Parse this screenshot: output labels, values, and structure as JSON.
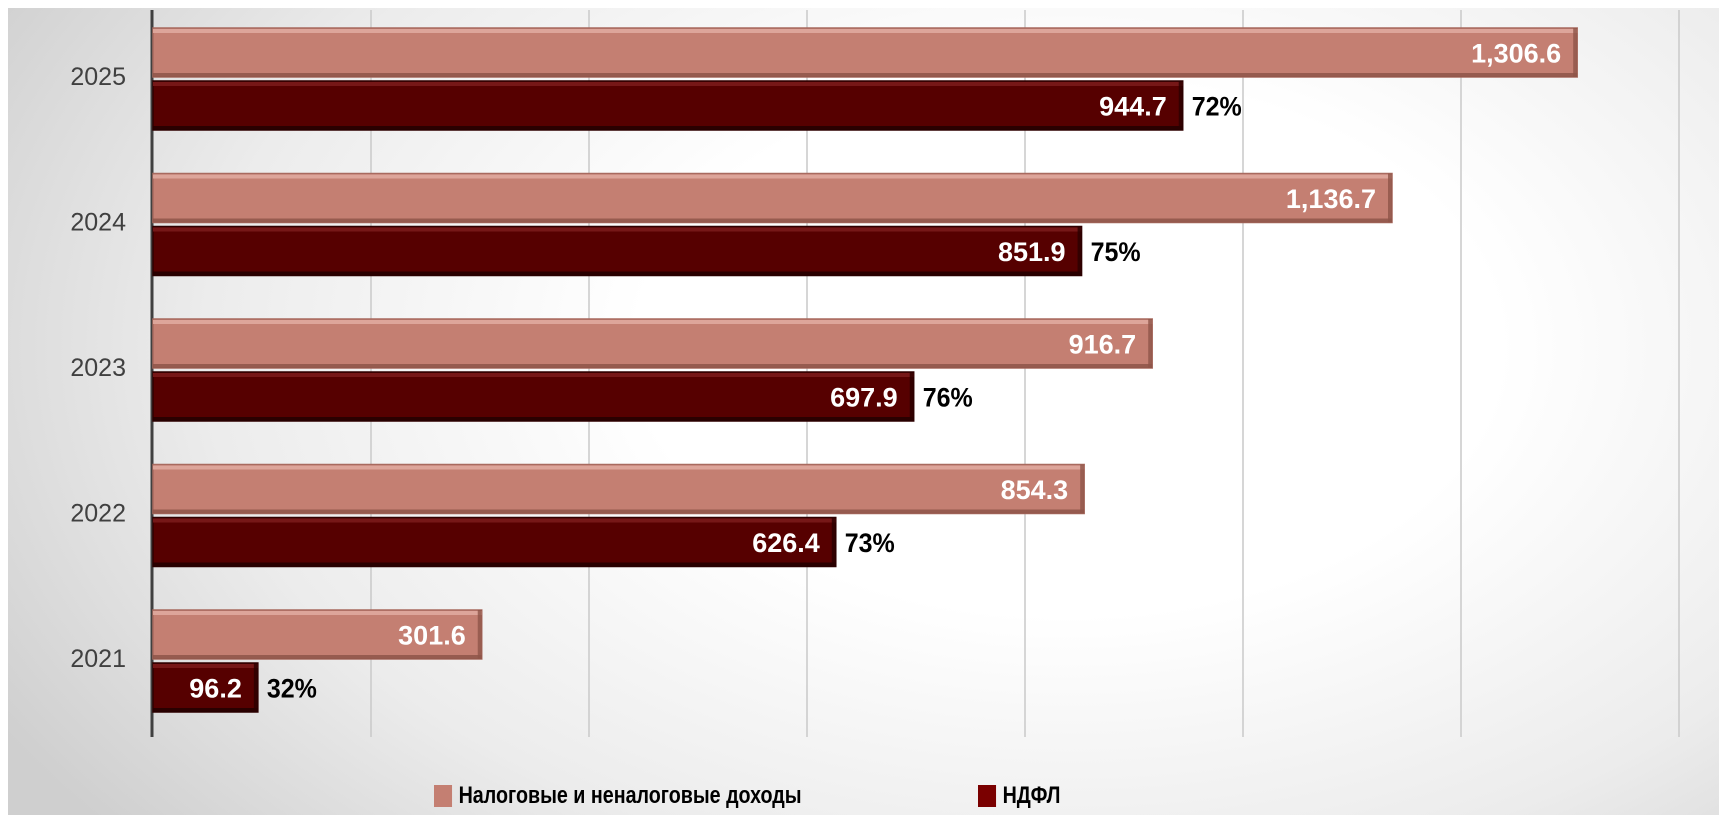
{
  "chart_data": {
    "type": "bar",
    "orientation": "horizontal",
    "categories": [
      "2025",
      "2024",
      "2023",
      "2022",
      "2021"
    ],
    "series": [
      {
        "name": "Налоговые и неналоговые доходы",
        "color": "#c47f72",
        "values": [
          1306.6,
          1136.7,
          916.7,
          854.3,
          301.6
        ],
        "labels": [
          "1,306.6",
          "1,136.7",
          "916.7",
          "854.3",
          "301.6"
        ]
      },
      {
        "name": "НДФЛ",
        "color": "#560000",
        "values": [
          944.7,
          851.9,
          697.9,
          626.4,
          96.2
        ],
        "labels": [
          "944.7",
          "851.9",
          "697.9",
          "626.4",
          "96.2"
        ],
        "shares": [
          "72%",
          "75%",
          "76%",
          "73%",
          "32%"
        ]
      }
    ],
    "xlim": [
      0,
      1400
    ],
    "grid": true,
    "legend": "bottom",
    "title": "",
    "xlabel": "",
    "ylabel": ""
  }
}
